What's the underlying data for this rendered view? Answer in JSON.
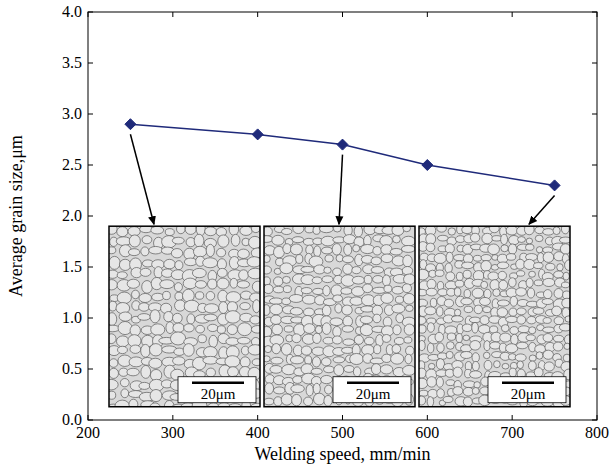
{
  "chart_data": {
    "type": "line",
    "x": [
      250,
      400,
      500,
      600,
      750
    ],
    "values": [
      2.9,
      2.8,
      2.7,
      2.5,
      2.3
    ],
    "color": "#1f2a7a",
    "marker": "diamond",
    "line_style": "solid",
    "x_label": "Welding speed,  mm/min",
    "y_label": "Average grain size,μm",
    "xlim": [
      200,
      800
    ],
    "xticks": [
      200,
      300,
      400,
      500,
      600,
      700,
      800
    ],
    "ylim": [
      0,
      4
    ],
    "yticks": [
      {
        "value": 0,
        "label": "0.0"
      },
      0.5,
      {
        "value": 1,
        "label": "1.0"
      },
      1.5,
      {
        "value": 2,
        "label": "2.0"
      },
      2.5,
      {
        "value": 3,
        "label": "3.0"
      },
      3.5,
      {
        "value": 4,
        "label": "4.0"
      }
    ],
    "grid": false,
    "annotations": [
      "20μm",
      "20μm",
      "20μm"
    ]
  }
}
